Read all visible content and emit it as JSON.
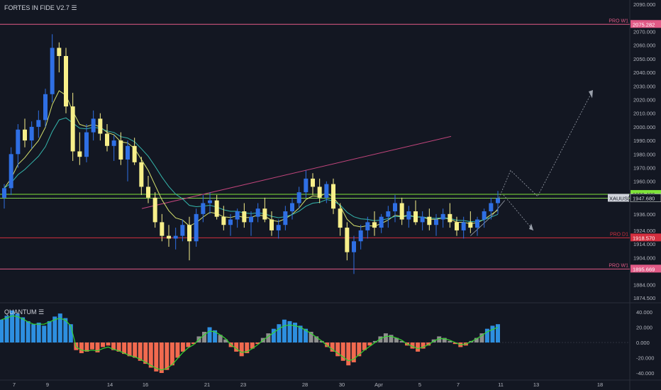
{
  "indicators": {
    "main_title": "FORTES IN FIDE V2.7 ☰",
    "sub_title": "QUANTUM ☰"
  },
  "colors": {
    "background": "#131722",
    "bull": "#2f6fe4",
    "bear": "#f7ef8a",
    "pro_line": "#e15a86",
    "support_line": "#d32f3f",
    "resistance_green": "#7fe33a",
    "ema_fast": "#d7e26e",
    "ema_slow": "#35b7ad",
    "hist_pos_strong": "#2d8fe0",
    "hist_pos_weak": "#8e8e8e",
    "hist_neg": "#f26a4f",
    "osc_line": "#33d42f"
  },
  "chart_data": [
    {
      "type": "candlestick",
      "title": "",
      "symbol": "XAUUSD",
      "x_tick_labels": [
        "7",
        "9",
        "14",
        "16",
        "21",
        "23",
        "28",
        "30",
        "Apr",
        "5",
        "7",
        "11",
        "13",
        "18"
      ],
      "y_tick_labels": [
        "2090.000",
        "2070.000",
        "2060.000",
        "2050.000",
        "2040.000",
        "2030.000",
        "2020.000",
        "2010.000",
        "2000.000",
        "1990.000",
        "1980.000",
        "1970.000",
        "1960.000",
        "1936.000",
        "1924.000",
        "1914.000",
        "1904.000",
        "1884.000",
        "1874.500"
      ],
      "ylim": [
        1874.5,
        2090
      ],
      "candles_note": "OHLC in price units, one per bar index",
      "candles": [
        [
          1948,
          1958,
          1940,
          1955
        ],
        [
          1955,
          1985,
          1950,
          1980
        ],
        [
          1980,
          2002,
          1970,
          1998
        ],
        [
          1998,
          2006,
          1985,
          1990
        ],
        [
          1990,
          2004,
          1984,
          2000
        ],
        [
          2000,
          2012,
          1992,
          2005
        ],
        [
          2005,
          2028,
          2000,
          2024
        ],
        [
          2024,
          2068,
          2018,
          2058
        ],
        [
          2058,
          2062,
          2040,
          2052
        ],
        [
          2052,
          2058,
          2010,
          2015
        ],
        [
          2015,
          2025,
          1975,
          1982
        ],
        [
          1982,
          1996,
          1972,
          1978
        ],
        [
          1978,
          2002,
          1974,
          1996
        ],
        [
          1996,
          2012,
          1990,
          2006
        ],
        [
          2006,
          2010,
          1990,
          1995
        ],
        [
          1995,
          2002,
          1982,
          1986
        ],
        [
          1986,
          1994,
          1975,
          1990
        ],
        [
          1990,
          1996,
          1972,
          1976
        ],
        [
          1976,
          1990,
          1960,
          1986
        ],
        [
          1986,
          1992,
          1972,
          1974
        ],
        [
          1974,
          1978,
          1950,
          1956
        ],
        [
          1956,
          1964,
          1944,
          1948
        ],
        [
          1948,
          1952,
          1926,
          1930
        ],
        [
          1930,
          1936,
          1916,
          1920
        ],
        [
          1920,
          1928,
          1912,
          1918
        ],
        [
          1918,
          1926,
          1910,
          1920
        ],
        [
          1920,
          1932,
          1916,
          1928
        ],
        [
          1928,
          1934,
          1902,
          1916
        ],
        [
          1916,
          1940,
          1912,
          1936
        ],
        [
          1936,
          1950,
          1930,
          1944
        ],
        [
          1944,
          1952,
          1936,
          1946
        ],
        [
          1946,
          1950,
          1932,
          1934
        ],
        [
          1934,
          1942,
          1924,
          1928
        ],
        [
          1928,
          1936,
          1920,
          1932
        ],
        [
          1932,
          1940,
          1926,
          1938
        ],
        [
          1938,
          1944,
          1926,
          1930
        ],
        [
          1930,
          1938,
          1920,
          1934
        ],
        [
          1934,
          1944,
          1930,
          1940
        ],
        [
          1940,
          1948,
          1930,
          1932
        ],
        [
          1932,
          1938,
          1920,
          1924
        ],
        [
          1924,
          1932,
          1918,
          1928
        ],
        [
          1928,
          1942,
          1924,
          1938
        ],
        [
          1938,
          1948,
          1932,
          1944
        ],
        [
          1944,
          1956,
          1940,
          1952
        ],
        [
          1952,
          1968,
          1948,
          1962
        ],
        [
          1962,
          1966,
          1950,
          1956
        ],
        [
          1956,
          1962,
          1944,
          1948
        ],
        [
          1948,
          1960,
          1944,
          1958
        ],
        [
          1958,
          1962,
          1936,
          1940
        ],
        [
          1940,
          1944,
          1920,
          1926
        ],
        [
          1926,
          1930,
          1902,
          1908
        ],
        [
          1908,
          1920,
          1892,
          1916
        ],
        [
          1916,
          1928,
          1910,
          1924
        ],
        [
          1924,
          1934,
          1918,
          1930
        ],
        [
          1930,
          1938,
          1920,
          1926
        ],
        [
          1926,
          1936,
          1922,
          1934
        ],
        [
          1934,
          1942,
          1926,
          1938
        ],
        [
          1938,
          1950,
          1930,
          1944
        ],
        [
          1944,
          1948,
          1928,
          1932
        ],
        [
          1932,
          1942,
          1926,
          1938
        ],
        [
          1938,
          1946,
          1928,
          1930
        ],
        [
          1930,
          1938,
          1924,
          1934
        ],
        [
          1934,
          1940,
          1924,
          1928
        ],
        [
          1928,
          1936,
          1920,
          1932
        ],
        [
          1932,
          1940,
          1926,
          1936
        ],
        [
          1936,
          1944,
          1926,
          1930
        ],
        [
          1930,
          1934,
          1920,
          1924
        ],
        [
          1924,
          1934,
          1918,
          1930
        ],
        [
          1930,
          1938,
          1922,
          1926
        ],
        [
          1926,
          1934,
          1920,
          1932
        ],
        [
          1932,
          1940,
          1926,
          1938
        ],
        [
          1938,
          1948,
          1932,
          1944
        ],
        [
          1944,
          1953,
          1936,
          1947.6
        ]
      ],
      "series": [
        {
          "name": "",
          "kind": "moving-average",
          "color": "#d7e26e"
        },
        {
          "name": "",
          "kind": "moving-average",
          "color": "#35b7ad"
        }
      ],
      "horizontal_levels": [
        {
          "label": "PRO W1",
          "value": 2075.282,
          "badge": "2075.282",
          "color": "#e15a86"
        },
        {
          "label": "",
          "value": 1950.466,
          "badge": "1950.466",
          "color": "#7fe33a"
        },
        {
          "label": "",
          "value": 1947.614,
          "badge": "1947.614",
          "color": "#7fe33a"
        },
        {
          "label": "PRO D1",
          "value": 1918.57,
          "badge": "1918.570",
          "color": "#d32f3f"
        },
        {
          "label": "PRO W1",
          "value": 1895.669,
          "badge": "1895.669",
          "color": "#e15a86"
        }
      ],
      "current_price": {
        "label": "XAUUSD",
        "value": 1947.68,
        "badge": "1947.680"
      }
    },
    {
      "type": "bar",
      "title": "QUANTUM",
      "y_tick_labels": [
        "40.000",
        "20.000",
        "0.000",
        "-20.000",
        "-40.000"
      ],
      "ylim": [
        -45,
        45
      ],
      "histogram": [
        30,
        35,
        42,
        38,
        33,
        28,
        24,
        26,
        22,
        28,
        34,
        38,
        32,
        24,
        -10,
        -14,
        -12,
        -9,
        -13,
        -6,
        -4,
        -10,
        -12,
        -15,
        -18,
        -20,
        -24,
        -28,
        -33,
        -38,
        -40,
        -36,
        -30,
        -20,
        -12,
        -6,
        -2,
        8,
        14,
        20,
        16,
        10,
        4,
        -6,
        -12,
        -18,
        -14,
        -8,
        -2,
        6,
        12,
        18,
        24,
        30,
        28,
        26,
        22,
        18,
        14,
        8,
        2,
        -6,
        -12,
        -18,
        -24,
        -30,
        -26,
        -18,
        -10,
        -4,
        2,
        8,
        12,
        10,
        6,
        2,
        -4,
        -8,
        -12,
        -8,
        -4,
        4,
        8,
        6,
        2,
        -2,
        -6,
        -4,
        2,
        6,
        12,
        18,
        22,
        24
      ],
      "signal_line": [
        30,
        32,
        35,
        34,
        31,
        27,
        24,
        24,
        24,
        27,
        30,
        32,
        29,
        22,
        -6,
        -10,
        -11,
        -10,
        -11,
        -8,
        -6,
        -9,
        -11,
        -14,
        -17,
        -19,
        -22,
        -26,
        -30,
        -34,
        -36,
        -34,
        -29,
        -21,
        -13,
        -7,
        -3,
        4,
        10,
        15,
        14,
        10,
        5,
        -3,
        -8,
        -13,
        -12,
        -8,
        -3,
        3,
        8,
        13,
        18,
        22,
        23,
        22,
        20,
        16,
        12,
        7,
        2,
        -4,
        -9,
        -14,
        -19,
        -24,
        -22,
        -16,
        -10,
        -5,
        0,
        5,
        8,
        8,
        6,
        3,
        -2,
        -5,
        -8,
        -6,
        -3,
        2,
        5,
        5,
        3,
        0,
        -3,
        -2,
        1,
        5,
        9,
        14,
        17,
        20
      ]
    }
  ]
}
